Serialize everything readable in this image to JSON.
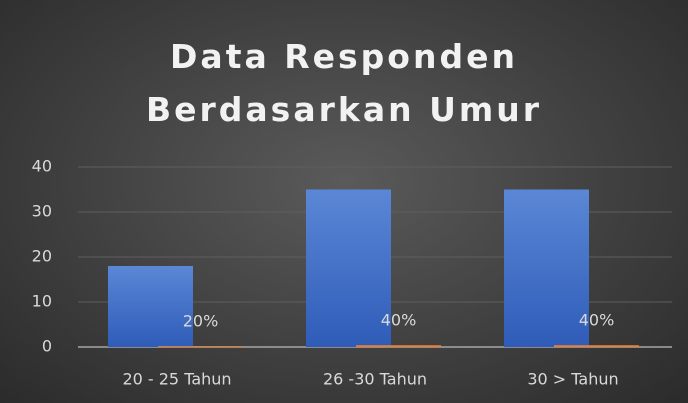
{
  "chart_data": {
    "type": "bar",
    "title": "Data Responden Berdasarkan Umur",
    "categories": [
      "20 - 25 Tahun",
      "26 -30 Tahun",
      "30 > Tahun"
    ],
    "series": [
      {
        "color": "#4472c4",
        "values": [
          18,
          35,
          35
        ]
      },
      {
        "color": "#ed7d31",
        "values": [
          0.2,
          0.4,
          0.4
        ],
        "value_labels": [
          "20%",
          "40%",
          "40%"
        ]
      }
    ],
    "ylim": [
      0,
      40
    ],
    "yticks": [
      0,
      10,
      20,
      30,
      40
    ],
    "grid": true
  }
}
